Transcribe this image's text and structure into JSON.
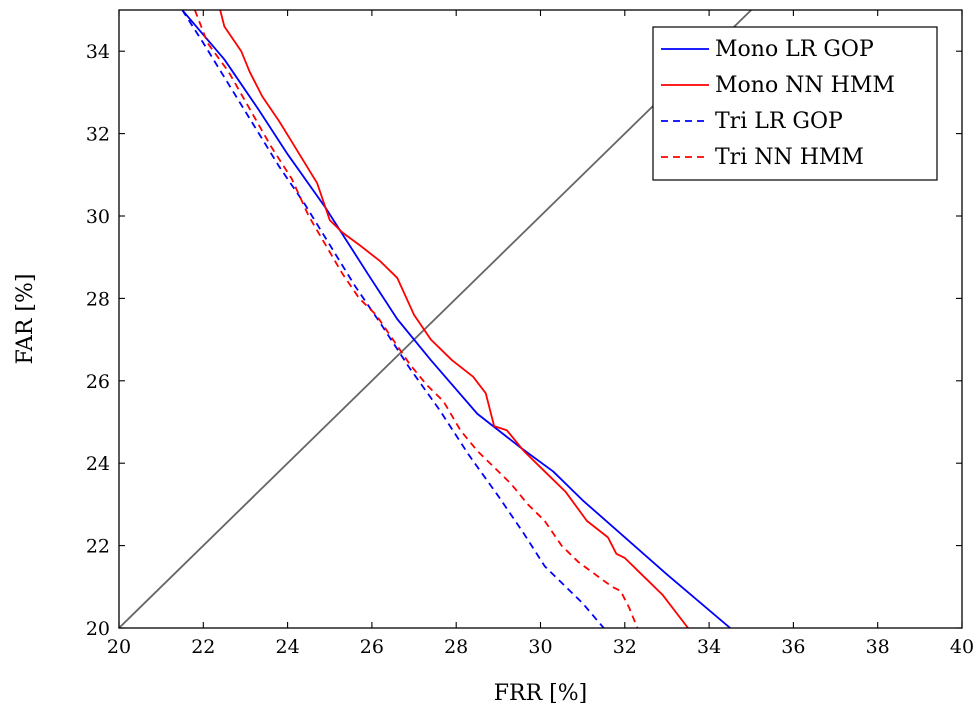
{
  "chart_data": {
    "type": "line",
    "title": "",
    "xlabel": "FRR [%]",
    "ylabel": "FAR [%]",
    "xlim": [
      20,
      40
    ],
    "ylim": [
      20,
      35
    ],
    "xticks": [
      20,
      22,
      24,
      26,
      28,
      30,
      32,
      34,
      36,
      38,
      40
    ],
    "yticks": [
      20,
      22,
      24,
      26,
      28,
      30,
      32,
      34
    ],
    "grid": false,
    "legend_position": "top-right",
    "reference_line": {
      "name": "EER line",
      "x": [
        20,
        35
      ],
      "y": [
        20,
        35
      ],
      "color": "#666666"
    },
    "series": [
      {
        "name": "Mono LR GOP",
        "color": "#0000ff",
        "dash": "solid",
        "x": [
          21.5,
          22.5,
          23.3,
          24.0,
          24.9,
          25.9,
          26.6,
          27.4,
          28.5,
          29.5,
          30.3,
          31.0,
          32.0,
          33.0,
          34.5
        ],
        "y": [
          35.0,
          33.8,
          32.6,
          31.5,
          30.2,
          28.6,
          27.5,
          26.5,
          25.2,
          24.4,
          23.8,
          23.1,
          22.2,
          21.3,
          20.0
        ]
      },
      {
        "name": "Mono NN HMM",
        "color": "#ff0000",
        "dash": "solid",
        "x": [
          22.4,
          22.5,
          22.9,
          23.1,
          23.4,
          23.8,
          24.1,
          24.4,
          24.7,
          25.0,
          25.3,
          25.7,
          26.2,
          26.6,
          27.0,
          27.4,
          27.9,
          28.4,
          28.7,
          28.9,
          29.2,
          29.6,
          30.1,
          30.6,
          31.1,
          31.6,
          31.8,
          32.0,
          32.4,
          32.9,
          33.5
        ],
        "y": [
          35.0,
          34.6,
          34.0,
          33.5,
          32.9,
          32.3,
          31.8,
          31.3,
          30.8,
          29.9,
          29.6,
          29.3,
          28.9,
          28.5,
          27.6,
          27.0,
          26.5,
          26.1,
          25.7,
          24.9,
          24.8,
          24.3,
          23.8,
          23.3,
          22.6,
          22.2,
          21.8,
          21.7,
          21.3,
          20.8,
          20.0
        ]
      },
      {
        "name": "Tri LR GOP",
        "color": "#0000ff",
        "dash": "dashed",
        "x": [
          21.5,
          22.0,
          22.6,
          23.2,
          23.8,
          24.4,
          25.0,
          25.6,
          26.2,
          26.9,
          27.6,
          28.3,
          29.0,
          29.6,
          30.1,
          30.6,
          31.0,
          31.5
        ],
        "y": [
          35.0,
          34.2,
          33.2,
          32.2,
          31.2,
          30.3,
          29.3,
          28.3,
          27.4,
          26.3,
          25.3,
          24.2,
          23.2,
          22.3,
          21.5,
          21.0,
          20.6,
          20.0
        ]
      },
      {
        "name": "Tri NN HMM",
        "color": "#ff0000",
        "dash": "dashed",
        "x": [
          21.8,
          22.1,
          22.6,
          23.1,
          23.6,
          24.1,
          24.5,
          24.9,
          25.3,
          25.7,
          26.1,
          26.5,
          26.9,
          27.3,
          27.7,
          28.1,
          28.5,
          28.9,
          29.3,
          29.7,
          30.1,
          30.5,
          30.9,
          31.3,
          31.7,
          31.9,
          32.1,
          32.3
        ],
        "y": [
          35.0,
          34.2,
          33.5,
          32.6,
          31.7,
          30.9,
          30.0,
          29.3,
          28.6,
          28.0,
          27.6,
          27.0,
          26.4,
          25.9,
          25.5,
          24.8,
          24.3,
          23.9,
          23.5,
          23.0,
          22.6,
          22.0,
          21.6,
          21.3,
          21.0,
          20.9,
          20.5,
          20.0
        ]
      }
    ]
  }
}
